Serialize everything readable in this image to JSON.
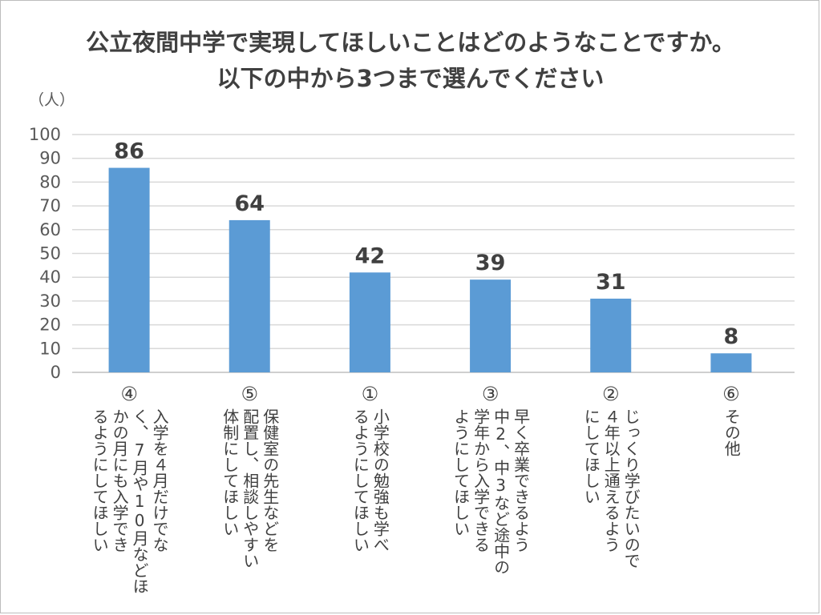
{
  "chart_data": {
    "type": "bar",
    "title": "公立夜間中学で実現してほしいことはどのようなことですか。",
    "subtitle": "以下の中から3つまで選んでください",
    "ylabel": "（人）",
    "ylim": [
      0,
      100
    ],
    "yticks": [
      0,
      10,
      20,
      30,
      40,
      50,
      60,
      70,
      80,
      90,
      100
    ],
    "grid": true,
    "bar_color": "#5b9bd5",
    "categories": [
      {
        "num": "④",
        "lines": [
          "入学を４月だけでな",
          "く、7月や10月などほ",
          "かの月にも入学でき",
          "るようにしてほしい"
        ]
      },
      {
        "num": "⑤",
        "lines": [
          "保健室の先生などを",
          "配置し、相談しやすい",
          "体制にしてほしい"
        ]
      },
      {
        "num": "①",
        "lines": [
          "小学校の勉強も学べ",
          "るようにしてほしい"
        ]
      },
      {
        "num": "③",
        "lines": [
          "早く卒業できるよう",
          "中2、中3など途中の",
          "学年から入学できる",
          "ようにしてほしい"
        ]
      },
      {
        "num": "②",
        "lines": [
          "じっくり学びたいので",
          "４年以上通えるよう",
          "にしてほしい"
        ]
      },
      {
        "num": "⑥",
        "lines": [
          "その他"
        ]
      }
    ],
    "values": [
      86,
      64,
      42,
      39,
      31,
      8
    ]
  }
}
